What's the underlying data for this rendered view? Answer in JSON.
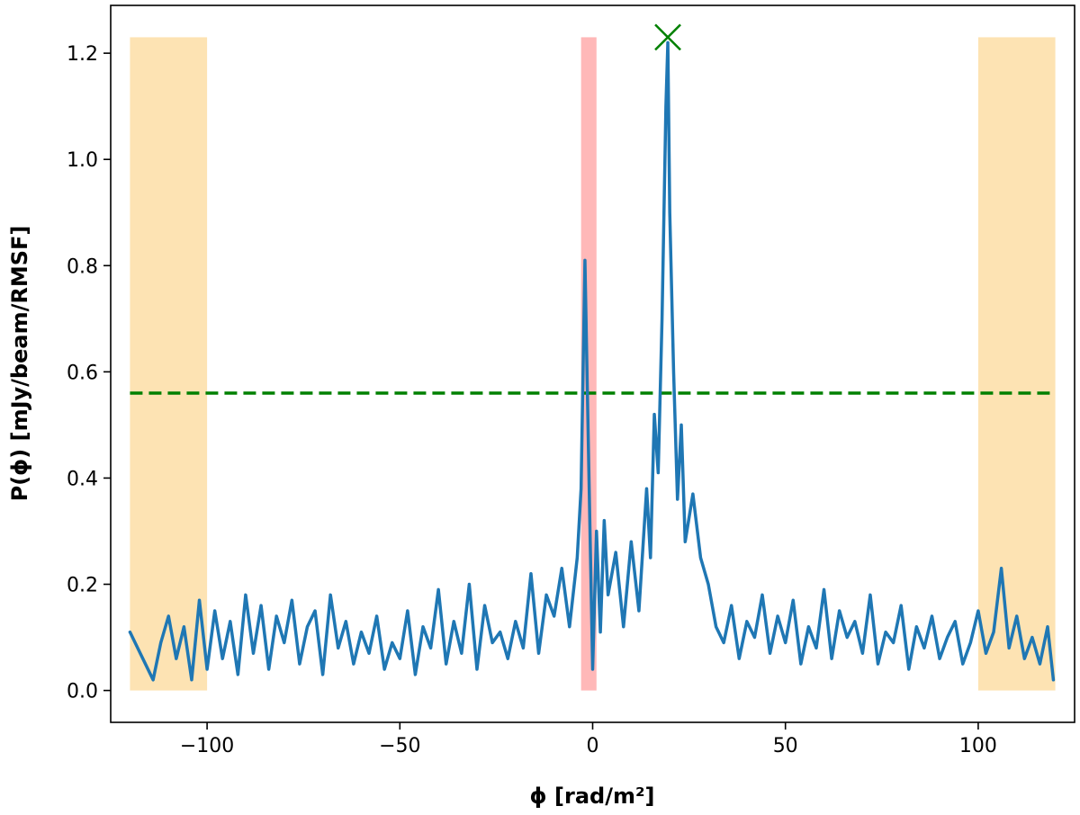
{
  "chart_data": {
    "type": "line",
    "title": "",
    "xlabel": "ϕ [rad/m²]",
    "ylabel": "P(ϕ) [mJy/beam/RMSF]",
    "xlim": [
      -125,
      125
    ],
    "ylim": [
      -0.06,
      1.29
    ],
    "grid": false,
    "legend": "none",
    "x_ticks": [
      {
        "value": -100,
        "label": "−100"
      },
      {
        "value": -50,
        "label": "−50"
      },
      {
        "value": 0,
        "label": "0"
      },
      {
        "value": 50,
        "label": "50"
      },
      {
        "value": 100,
        "label": "100"
      }
    ],
    "y_ticks": [
      {
        "value": 0.0,
        "label": "0.0"
      },
      {
        "value": 0.2,
        "label": "0.2"
      },
      {
        "value": 0.4,
        "label": "0.4"
      },
      {
        "value": 0.6,
        "label": "0.6"
      },
      {
        "value": 0.8,
        "label": "0.8"
      },
      {
        "value": 1.0,
        "label": "1.0"
      },
      {
        "value": 1.2,
        "label": "1.2"
      }
    ],
    "shaded_regions": [
      {
        "x0": -120,
        "x1": -100,
        "y0": 0.0,
        "y1": 1.23,
        "color": "#fde3b3"
      },
      {
        "x0": -3,
        "x1": 1,
        "y0": 0.0,
        "y1": 1.23,
        "color": "#ffb8b8"
      },
      {
        "x0": 100,
        "x1": 120,
        "y0": 0.0,
        "y1": 1.23,
        "color": "#fde3b3"
      }
    ],
    "threshold": {
      "y": 0.56,
      "x0": -120,
      "x1": 120,
      "color": "#008000",
      "style": "dashed"
    },
    "peak_marker": {
      "x": 19.5,
      "y": 1.23,
      "color": "#008000",
      "symbol": "x"
    },
    "series": [
      {
        "color": "#1f77b4",
        "x": [
          -120,
          -118,
          -116,
          -114,
          -112,
          -110,
          -108,
          -106,
          -104,
          -102,
          -100,
          -98,
          -96,
          -94,
          -92,
          -90,
          -88,
          -86,
          -84,
          -82,
          -80,
          -78,
          -76,
          -74,
          -72,
          -70,
          -68,
          -66,
          -64,
          -62,
          -60,
          -58,
          -56,
          -54,
          -52,
          -50,
          -48,
          -46,
          -44,
          -42,
          -40,
          -38,
          -36,
          -34,
          -32,
          -30,
          -28,
          -26,
          -24,
          -22,
          -20,
          -18,
          -16,
          -14,
          -12,
          -10,
          -8,
          -6,
          -4,
          -3,
          -2,
          -1,
          0,
          1,
          2,
          3,
          4,
          6,
          8,
          10,
          12,
          14,
          15,
          16,
          17,
          18,
          19,
          19.5,
          20,
          21,
          22,
          23,
          24,
          26,
          28,
          30,
          32,
          34,
          36,
          38,
          40,
          42,
          44,
          46,
          48,
          50,
          52,
          54,
          56,
          58,
          60,
          62,
          64,
          66,
          68,
          70,
          72,
          74,
          76,
          78,
          80,
          82,
          84,
          86,
          88,
          90,
          92,
          94,
          96,
          98,
          100,
          102,
          104,
          106,
          108,
          110,
          112,
          114,
          116,
          118,
          119.5
        ],
        "y": [
          0.11,
          0.08,
          0.05,
          0.02,
          0.09,
          0.14,
          0.06,
          0.12,
          0.02,
          0.17,
          0.04,
          0.15,
          0.06,
          0.13,
          0.03,
          0.18,
          0.07,
          0.16,
          0.04,
          0.14,
          0.09,
          0.17,
          0.05,
          0.12,
          0.15,
          0.03,
          0.18,
          0.08,
          0.13,
          0.05,
          0.11,
          0.07,
          0.14,
          0.04,
          0.09,
          0.06,
          0.15,
          0.03,
          0.12,
          0.08,
          0.19,
          0.05,
          0.13,
          0.07,
          0.2,
          0.04,
          0.16,
          0.09,
          0.11,
          0.06,
          0.13,
          0.08,
          0.22,
          0.07,
          0.18,
          0.14,
          0.23,
          0.12,
          0.25,
          0.38,
          0.81,
          0.42,
          0.04,
          0.3,
          0.11,
          0.32,
          0.18,
          0.26,
          0.12,
          0.28,
          0.15,
          0.38,
          0.25,
          0.52,
          0.41,
          0.7,
          1.1,
          1.22,
          0.9,
          0.6,
          0.36,
          0.5,
          0.28,
          0.37,
          0.25,
          0.2,
          0.12,
          0.09,
          0.16,
          0.06,
          0.13,
          0.1,
          0.18,
          0.07,
          0.14,
          0.09,
          0.17,
          0.05,
          0.12,
          0.08,
          0.19,
          0.06,
          0.15,
          0.1,
          0.13,
          0.07,
          0.18,
          0.05,
          0.11,
          0.09,
          0.16,
          0.04,
          0.12,
          0.08,
          0.14,
          0.06,
          0.1,
          0.13,
          0.05,
          0.09,
          0.15,
          0.07,
          0.11,
          0.23,
          0.08,
          0.14,
          0.06,
          0.1,
          0.05,
          0.12,
          0.02
        ]
      }
    ]
  }
}
